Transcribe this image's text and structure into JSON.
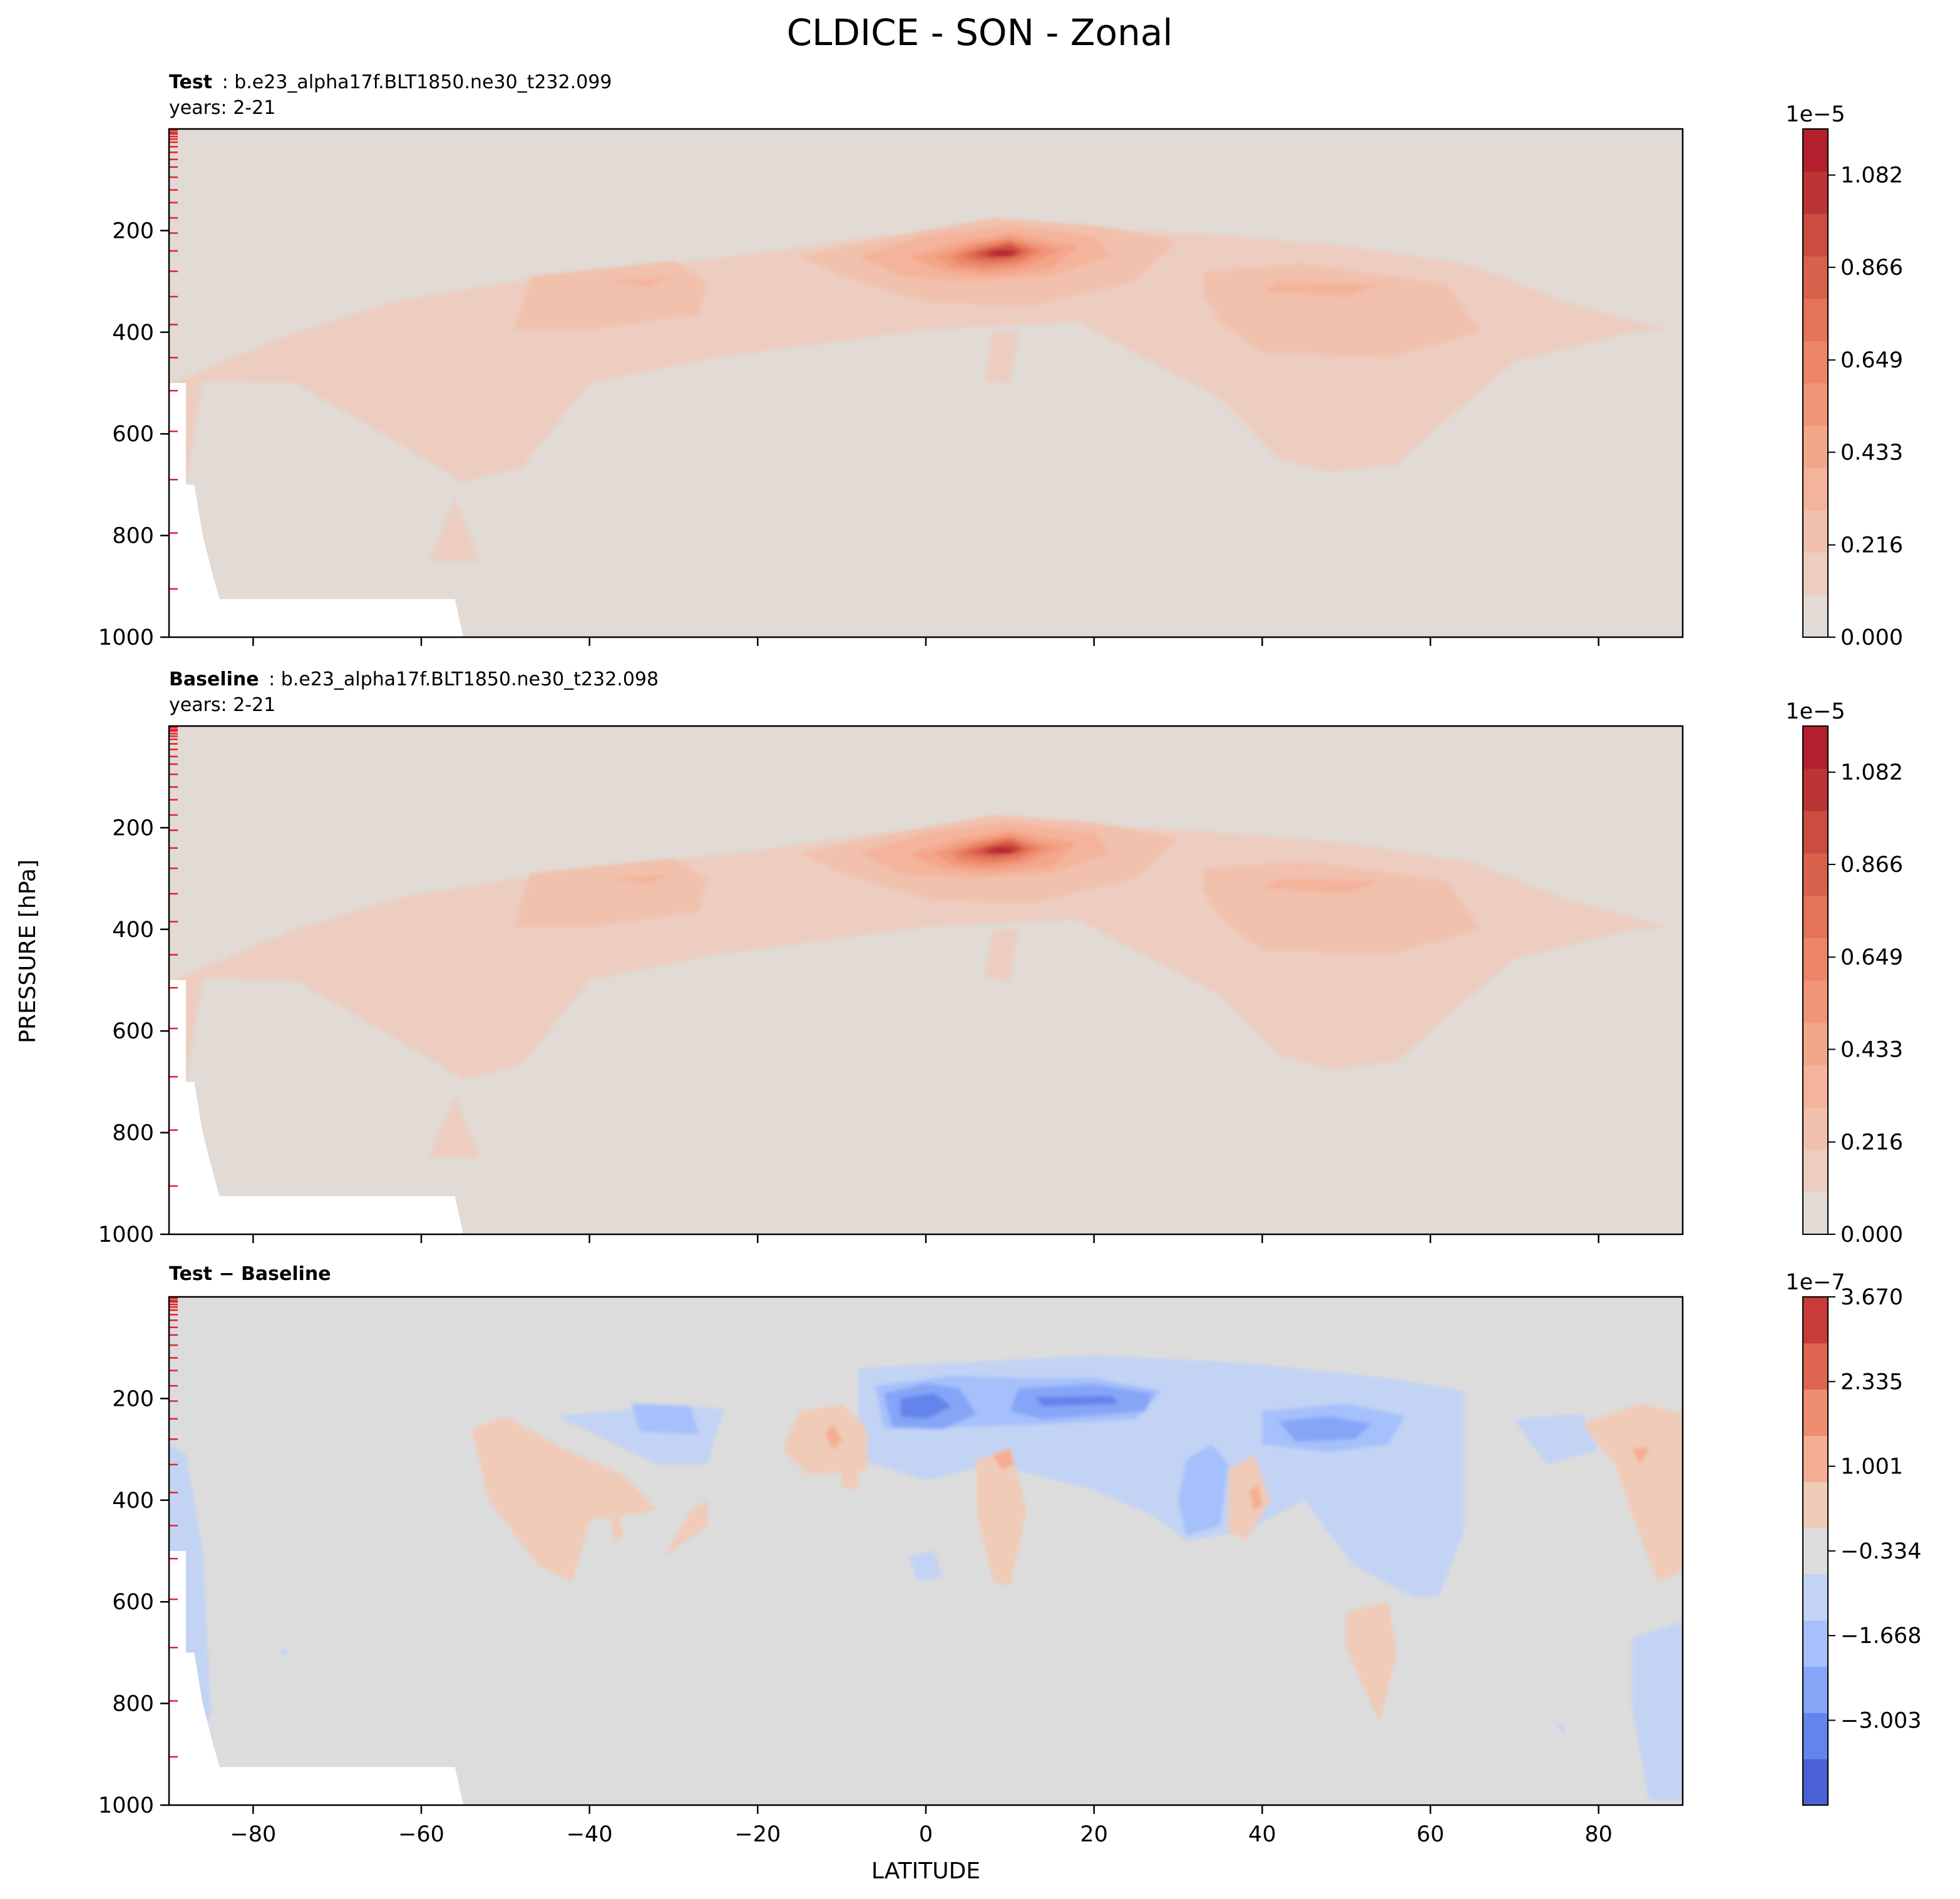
{
  "figure": {
    "title": "CLDICE - SON - Zonal",
    "ylabel": "PRESSURE [hPa]",
    "xlabel": "LATITUDE"
  },
  "chart_data": [
    {
      "type": "heatmap",
      "panel": "test",
      "subtitle_bold": "Test",
      "subtitle_rest": ": b.e23_alpha17f.BLT1850.ne30_t232.099",
      "years": "years: 2-21",
      "colormap": "coolwarm (upper half)",
      "xlim": [
        -90,
        90
      ],
      "ylim": [
        1000,
        0
      ],
      "x_ticks": [
        -80,
        -60,
        -40,
        -20,
        0,
        20,
        40,
        60,
        80
      ],
      "y_ticks": [
        200,
        400,
        600,
        800,
        1000
      ],
      "colorbar": {
        "multiplier": "1e−5",
        "levels": 12,
        "range": [
          0.0,
          1.19
        ],
        "tick_labels": [
          "0.000",
          "0.216",
          "0.433",
          "0.649",
          "0.866",
          "1.082"
        ],
        "colors": [
          "#e1dad5",
          "#eccdc0",
          "#f1c1ad",
          "#f4b49c",
          "#f4a68a",
          "#f19679",
          "#ec8568",
          "#e47459",
          "#d8614c",
          "#cb4c40",
          "#bb3535",
          "#b5202e"
        ]
      },
      "features": [
        {
          "lat": 9,
          "p": 245,
          "value": 1.15,
          "note": "tropical upper-tropospheric maximum"
        },
        {
          "lat": -30,
          "p": 300,
          "value": 0.35
        },
        {
          "lat": 48,
          "p": 320,
          "value": 0.35
        }
      ]
    },
    {
      "type": "heatmap",
      "panel": "baseline",
      "subtitle_bold": "Baseline",
      "subtitle_rest": ": b.e23_alpha17f.BLT1850.ne30_t232.098",
      "years": "years: 2-21",
      "colormap": "coolwarm (upper half)",
      "xlim": [
        -90,
        90
      ],
      "ylim": [
        1000,
        0
      ],
      "x_ticks": [
        -80,
        -60,
        -40,
        -20,
        0,
        20,
        40,
        60,
        80
      ],
      "y_ticks": [
        200,
        400,
        600,
        800,
        1000
      ],
      "colorbar": {
        "multiplier": "1e−5",
        "levels": 12,
        "range": [
          0.0,
          1.19
        ],
        "tick_labels": [
          "0.000",
          "0.216",
          "0.433",
          "0.649",
          "0.866",
          "1.082"
        ],
        "colors": [
          "#e1dad5",
          "#eccdc0",
          "#f1c1ad",
          "#f4b49c",
          "#f4a68a",
          "#f19679",
          "#ec8568",
          "#e47459",
          "#d8614c",
          "#cb4c40",
          "#bb3535",
          "#b5202e"
        ]
      },
      "features": [
        {
          "lat": 9,
          "p": 245,
          "value": 1.15
        },
        {
          "lat": -30,
          "p": 300,
          "value": 0.35
        },
        {
          "lat": 48,
          "p": 320,
          "value": 0.35
        }
      ]
    },
    {
      "type": "heatmap",
      "panel": "difference",
      "subtitle_bold": "Test − Baseline",
      "subtitle_rest": "",
      "years": "",
      "colormap": "coolwarm",
      "xlim": [
        -90,
        90
      ],
      "ylim": [
        1000,
        0
      ],
      "x_ticks": [
        -80,
        -60,
        -40,
        -20,
        0,
        20,
        40,
        60,
        80
      ],
      "x_tick_labels": [
        "−80",
        "−60",
        "−40",
        "−20",
        "0",
        "20",
        "40",
        "60",
        "80"
      ],
      "y_ticks": [
        200,
        400,
        600,
        800,
        1000
      ],
      "colorbar": {
        "multiplier": "1e−7",
        "levels": 11,
        "range": [
          -4.34,
          3.67
        ],
        "tick_labels": [
          "−3.003",
          "−1.668",
          "−0.334",
          "1.001",
          "2.335",
          "3.670"
        ],
        "colors": [
          "#4a62d5",
          "#6384eb",
          "#86a5f7",
          "#a5c0fb",
          "#c2d3f4",
          "#dcdcdc",
          "#f0cbb8",
          "#f4ae93",
          "#ed8d72",
          "#de6550",
          "#c93b37"
        ]
      },
      "features": [
        {
          "lat": 0,
          "p": 210,
          "value": -3.5
        },
        {
          "lat": 16,
          "p": 200,
          "value": -3.5
        },
        {
          "lat": 45,
          "p": 260,
          "value": -3.0
        },
        {
          "lat": -33,
          "p": 240,
          "value": -1.4
        },
        {
          "lat": -45,
          "p": 400,
          "value": 0.8
        },
        {
          "lat": 9,
          "p": 350,
          "value": 1.5
        },
        {
          "lat": -12,
          "p": 280,
          "value": 1.5
        },
        {
          "lat": 39,
          "p": 420,
          "value": 1.5
        },
        {
          "lat": 85,
          "p": 300,
          "value": 1.0
        }
      ]
    }
  ]
}
